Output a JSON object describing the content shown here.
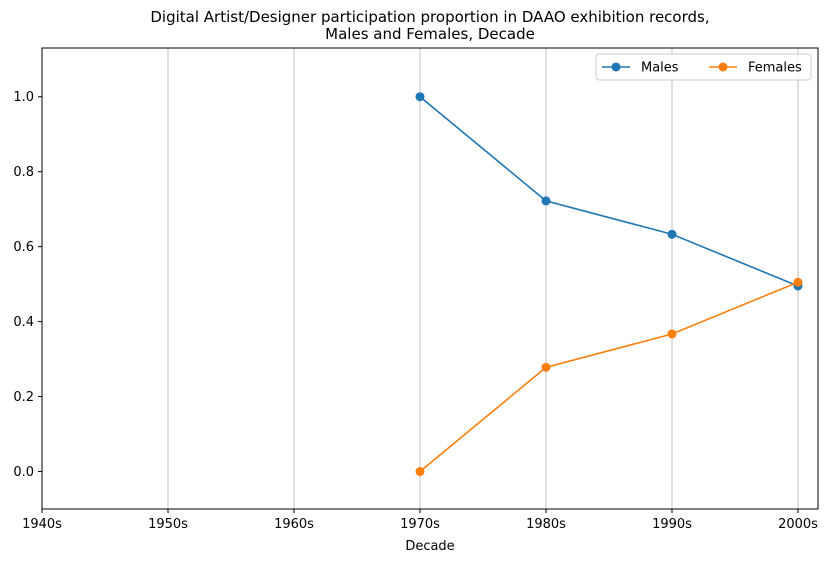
{
  "chart_data": {
    "type": "line",
    "title_line1": "Digital Artist/Designer participation proportion in DAAO exhibition records,",
    "title_line2": "Males and Females, Decade",
    "xlabel": "Decade",
    "ylabel": "",
    "categories": [
      "1940s",
      "1950s",
      "1960s",
      "1970s",
      "1980s",
      "1990s",
      "2000s"
    ],
    "ylim": [
      -0.1,
      1.13
    ],
    "yticks": [
      "0.0",
      "0.2",
      "0.4",
      "0.6",
      "0.8",
      "1.0"
    ],
    "grid": "vertical",
    "legend_position": "top-right",
    "series": [
      {
        "name": "Males",
        "color": "#1f77b4",
        "x": [
          "1970s",
          "1980s",
          "1990s",
          "2000s"
        ],
        "values": [
          1.0,
          0.722,
          0.633,
          0.495
        ]
      },
      {
        "name": "Females",
        "color": "#ff7f0e",
        "x": [
          "1970s",
          "1980s",
          "1990s",
          "2000s"
        ],
        "values": [
          0.0,
          0.278,
          0.367,
          0.505
        ]
      }
    ]
  }
}
